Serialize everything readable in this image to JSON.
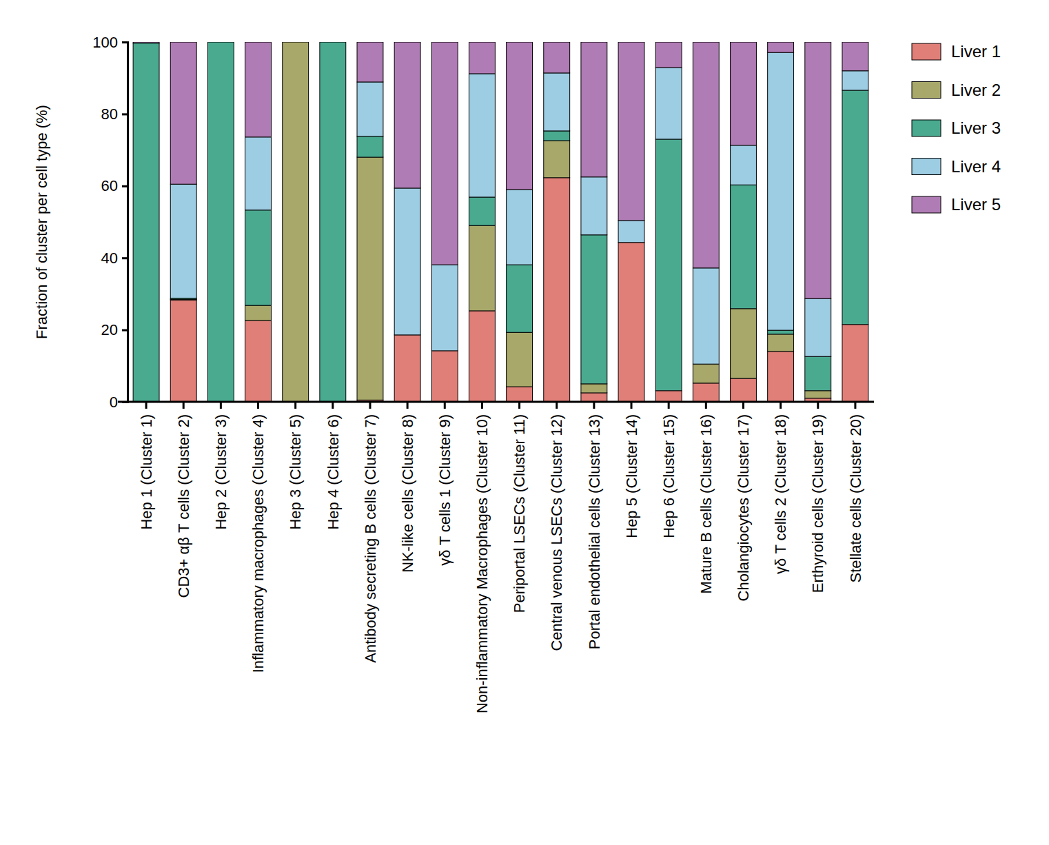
{
  "chart_data": {
    "type": "bar",
    "stacked": true,
    "legend": "right",
    "y_label": "Fraction of cluster per cell type (%)",
    "categories": [
      "Hep 1 (Cluster 1)",
      "CD3+ αβ T cells (Cluster 2)",
      "Hep 2 (Cluster 3)",
      "Inflammatory macrophages (Cluster 4)",
      "Hep 3 (Cluster 5)",
      "Hep 4 (Cluster 6)",
      "Antibody secreting B cells (Cluster 7)",
      "NK-like cells (Cluster 8)",
      "γδ T cells 1 (Cluster 9)",
      "Non-inflammatory Macrophages (Cluster 10)",
      "Periportal LSECs (Cluster 11)",
      "Central venous LSECs (Cluster 12)",
      "Portal endothelial cells (Cluster 13)",
      "Hep 5 (Cluster 14)",
      "Hep 6 (Cluster 15)",
      "Mature B cells (Cluster 16)",
      "Cholangiocytes (Cluster 17)",
      "γδ T cells 2 (Cluster 18)",
      "Erthyroid cells (Cluster 19)",
      "Stellate cells (Cluster 20)"
    ],
    "series": [
      {
        "name": "Liver 1",
        "color": "#e07f78",
        "values": [
          0,
          28.3,
          0,
          22.6,
          0,
          0,
          0.5,
          18.6,
          14.2,
          25.3,
          4.2,
          62.3,
          2.5,
          44.3,
          3.1,
          5.2,
          6.5,
          14.0,
          1.0,
          21.5
        ]
      },
      {
        "name": "Liver 2",
        "color": "#a8a86a",
        "values": [
          0,
          0.2,
          0,
          4.2,
          100,
          0,
          67.5,
          0,
          0,
          23.7,
          15.1,
          10.3,
          2.5,
          0,
          0,
          5.3,
          19.4,
          4.8,
          2.1,
          0
        ]
      },
      {
        "name": "Liver 3",
        "color": "#4aaa90",
        "values": [
          99.7,
          0.3,
          100,
          26.5,
          0,
          100,
          5.8,
          0,
          0,
          7.9,
          18.8,
          2.7,
          41.4,
          0,
          69.9,
          0,
          34.4,
          1.1,
          9.5,
          65.1
        ]
      },
      {
        "name": "Liver 4",
        "color": "#9dcde3",
        "values": [
          0,
          31.7,
          0,
          20.3,
          0,
          0,
          15.1,
          40.8,
          23.9,
          34.3,
          20.9,
          16.1,
          16.1,
          6.1,
          19.9,
          26.7,
          11.0,
          77.2,
          16.1,
          5.4
        ]
      },
      {
        "name": "Liver 5",
        "color": "#b07cb5",
        "values": [
          0.3,
          39.5,
          0,
          26.4,
          0,
          0,
          11.1,
          40.6,
          61.9,
          8.8,
          41.0,
          8.6,
          37.5,
          49.6,
          7.1,
          62.8,
          28.7,
          2.9,
          71.3,
          8.0
        ]
      }
    ],
    "ylim": [
      0,
      100
    ],
    "yticks": [
      0,
      20,
      40,
      60,
      80,
      100
    ]
  }
}
